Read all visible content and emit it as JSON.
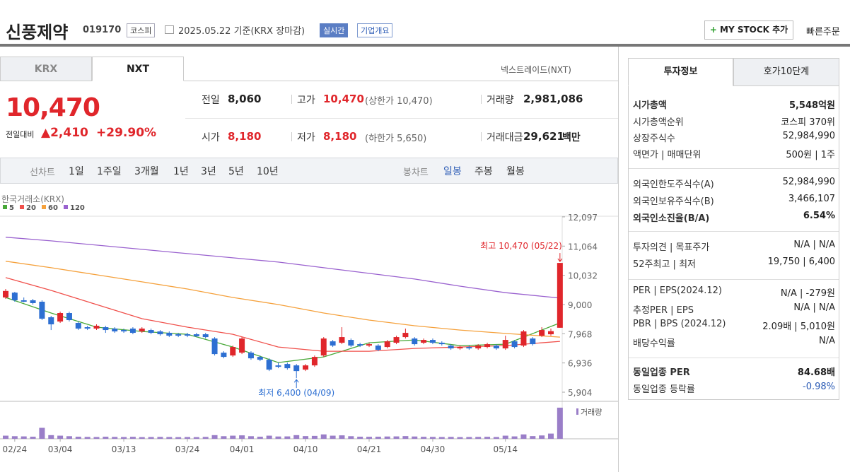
{
  "header": {
    "name": "신풍제약",
    "code": "019170",
    "market": "코스피",
    "date": "2025.05.22 기준(KRX 장마감)",
    "realtime": "실시간",
    "company": "기업개요",
    "mystock": "MY STOCK 추가",
    "quick": "빠른주문"
  },
  "tabs": [
    "KRX",
    "NXT"
  ],
  "nxt_link": "넥스트레이드(NXT)",
  "quote": {
    "price": "10,470",
    "change_label": "전일대비",
    "change": "2,410",
    "rate": "+29.90%",
    "items": [
      {
        "label": "전일",
        "value": "8,060"
      },
      {
        "label": "고가",
        "value": "10,470",
        "note": "(상한가 10,470)"
      },
      {
        "label": "거래량",
        "value": "2,981,086"
      },
      {
        "label": "시가",
        "value": "8,180"
      },
      {
        "label": "저가",
        "value": "8,180",
        "note": "(하한가 5,650)"
      },
      {
        "label": "거래대금",
        "value": "29,621",
        "unit": "백만"
      }
    ]
  },
  "periods": {
    "label": "선차트",
    "items": [
      "1일",
      "1주일",
      "3개월",
      "1년",
      "3년",
      "5년",
      "10년"
    ],
    "candle_label": "봉차트",
    "candle_items": [
      "일봉",
      "주봉",
      "월봉"
    ]
  },
  "chart_data": {
    "type": "candlestick",
    "source": "한국거래소(KRX)",
    "up_color": "#e0262b",
    "down_color": "#2d6fd2",
    "categories": [
      null,
      "02/24",
      null,
      null,
      null,
      null,
      "03/04",
      null,
      null,
      null,
      null,
      null,
      null,
      "03/13",
      null,
      null,
      null,
      null,
      null,
      null,
      "03/24",
      null,
      null,
      null,
      null,
      null,
      "04/01",
      null,
      null,
      null,
      null,
      null,
      null,
      "04/10",
      null,
      null,
      null,
      null,
      null,
      null,
      "04/21",
      null,
      null,
      null,
      null,
      null,
      null,
      "04/30",
      null,
      null,
      null,
      null,
      null,
      null,
      null,
      "05/14",
      null,
      null,
      null,
      null,
      null,
      null
    ],
    "open": [
      9250,
      9420,
      9150,
      9150,
      9100,
      8550,
      8400,
      8700,
      8350,
      8200,
      8150,
      8200,
      8150,
      8100,
      8150,
      8050,
      8100,
      8050,
      8000,
      7950,
      7950,
      7950,
      7950,
      7800,
      7300,
      7200,
      7300,
      7300,
      7150,
      7050,
      6850,
      6900,
      6850,
      6700,
      6850,
      7200,
      7700,
      7650,
      7750,
      7600,
      7550,
      7550,
      7500,
      7650,
      7850,
      7800,
      7650,
      7750,
      7650,
      7550,
      7450,
      7500,
      7450,
      7500,
      7550,
      7450,
      7700,
      7550,
      7800,
      7900,
      7950,
      8180
    ],
    "high": [
      9550,
      9450,
      9250,
      9200,
      9150,
      8600,
      8750,
      8750,
      8400,
      8250,
      8300,
      8250,
      8200,
      8150,
      8200,
      8200,
      8150,
      8100,
      8050,
      8000,
      8000,
      8000,
      8000,
      7850,
      7350,
      7550,
      7850,
      7350,
      7200,
      7100,
      6950,
      6950,
      6900,
      6900,
      7200,
      7850,
      7750,
      8200,
      7800,
      7650,
      7650,
      7600,
      7750,
      7900,
      8150,
      7850,
      7800,
      7800,
      7700,
      7600,
      7550,
      7550,
      7600,
      7650,
      7600,
      7900,
      7750,
      8100,
      7850,
      8200,
      8150,
      10470
    ],
    "low": [
      9200,
      9100,
      9080,
      9000,
      8450,
      8100,
      8350,
      8400,
      8100,
      8100,
      8100,
      8000,
      8000,
      8000,
      7950,
      8000,
      7950,
      7900,
      7850,
      7850,
      7850,
      7850,
      7800,
      7200,
      7100,
      7150,
      7250,
      7050,
      7000,
      6650,
      6750,
      6700,
      6400,
      6650,
      6800,
      7150,
      7500,
      7600,
      7500,
      7500,
      7500,
      7350,
      7450,
      7600,
      7800,
      7550,
      7600,
      7600,
      7550,
      7400,
      7400,
      7400,
      7400,
      7450,
      7400,
      7400,
      7450,
      7500,
      7550,
      7850,
      7900,
      8180
    ],
    "close": [
      9480,
      9150,
      9100,
      9050,
      8500,
      8300,
      8700,
      8450,
      8150,
      8150,
      8250,
      8100,
      8050,
      8050,
      8000,
      8150,
      8000,
      7950,
      7900,
      7900,
      7900,
      7880,
      7850,
      7250,
      7150,
      7500,
      7800,
      7100,
      7050,
      6700,
      6800,
      6750,
      6650,
      6850,
      7150,
      7800,
      7550,
      7850,
      7550,
      7550,
      7600,
      7400,
      7700,
      7850,
      8000,
      7600,
      7750,
      7650,
      7600,
      7450,
      7500,
      7450,
      7550,
      7600,
      7450,
      7750,
      7500,
      8050,
      7600,
      8100,
      8060,
      10470
    ],
    "volume": [
      300000,
      250000,
      230000,
      200000,
      1050000,
      350000,
      300000,
      250000,
      200000,
      180000,
      170000,
      200000,
      180000,
      170000,
      190000,
      160000,
      170000,
      180000,
      170000,
      160000,
      170000,
      160000,
      180000,
      350000,
      250000,
      300000,
      330000,
      250000,
      200000,
      300000,
      220000,
      230000,
      350000,
      260000,
      280000,
      420000,
      300000,
      330000,
      250000,
      200000,
      190000,
      200000,
      220000,
      230000,
      260000,
      220000,
      190000,
      180000,
      170000,
      180000,
      160000,
      170000,
      180000,
      190000,
      170000,
      300000,
      230000,
      420000,
      260000,
      320000,
      500000,
      2981086
    ],
    "volume_label": "거래량",
    "vlim": [
      0,
      3180000
    ],
    "ylim": [
      5630,
      12270
    ],
    "yticks": [
      {
        "value": 5904,
        "label": "5,904"
      },
      {
        "value": 6936,
        "label": "6,936"
      },
      {
        "value": 7968,
        "label": "7,968"
      },
      {
        "value": 9000,
        "label": "9,000"
      },
      {
        "value": 10032,
        "label": "10,032"
      },
      {
        "value": 11064,
        "label": "11,064"
      },
      {
        "value": 12097,
        "label": "12,097"
      }
    ],
    "series": [
      {
        "name": "5",
        "color": "#48a838",
        "x": [
          0,
          5,
          10,
          15,
          20,
          25,
          30,
          35,
          40,
          45,
          50,
          55,
          61
        ],
        "values": [
          9250,
          8700,
          8200,
          8050,
          7950,
          7500,
          6950,
          7150,
          7650,
          7750,
          7550,
          7600,
          8350
        ]
      },
      {
        "name": "20",
        "color": "#f0504b",
        "x": [
          0,
          5,
          10,
          15,
          20,
          25,
          30,
          35,
          40,
          45,
          50,
          55,
          61
        ],
        "values": [
          9950,
          9500,
          9000,
          8500,
          8200,
          7950,
          7500,
          7350,
          7350,
          7450,
          7500,
          7550,
          7700
        ]
      },
      {
        "name": "60",
        "color": "#f5a13c",
        "x": [
          0,
          5,
          10,
          15,
          20,
          25,
          30,
          35,
          40,
          45,
          50,
          55,
          61
        ],
        "values": [
          10530,
          10300,
          10050,
          9800,
          9550,
          9250,
          9000,
          8700,
          8450,
          8250,
          8100,
          7980,
          7850
        ]
      },
      {
        "name": "120",
        "color": "#9a62cf",
        "x": [
          0,
          5,
          10,
          15,
          20,
          25,
          30,
          35,
          40,
          45,
          50,
          55,
          61
        ],
        "values": [
          11380,
          11250,
          11100,
          10950,
          10800,
          10650,
          10500,
          10300,
          10100,
          9900,
          9650,
          9420,
          9230
        ]
      }
    ],
    "annotations": [
      {
        "text": "최고 10,470 (05/22)",
        "index": 61,
        "value": 10470
      },
      {
        "text": "최저 6,400 (04/09)",
        "index": 32,
        "value": 6400
      }
    ]
  },
  "side": {
    "tabs": [
      "투자정보",
      "호가10단계"
    ],
    "groups": [
      [
        {
          "label": "시가총액",
          "value": "5,548억원",
          "bold": true
        },
        {
          "label": "시가총액순위",
          "value": "코스피 370위"
        },
        {
          "label": "상장주식수",
          "value": "52,984,990"
        },
        {
          "label": "액면가 | 매매단위",
          "value": "500원 | 1주"
        }
      ],
      [
        {
          "label": "외국인한도주식수(A)",
          "value": "52,984,990"
        },
        {
          "label": "외국인보유주식수(B)",
          "value": "3,466,107"
        },
        {
          "label": "외국인소진율(B/A)",
          "value": "6.54%",
          "bold": true
        }
      ],
      [
        {
          "label": "투자의견 | 목표주가",
          "value": "N/A | N/A"
        },
        {
          "label": "52주최고 | 최저",
          "value": "19,750 | 6,400"
        }
      ],
      [
        {
          "label": "PER | EPS(2024.12)",
          "value": "N/A | -279원"
        },
        {
          "label": "추정PER | EPS",
          "value": "N/A | N/A"
        },
        {
          "label": "PBR | BPS (2024.12)",
          "value": "2.09배 | 5,010원"
        },
        {
          "label": "배당수익률",
          "value": "N/A"
        }
      ],
      [
        {
          "label": "동일업종 PER",
          "value": "84.68배",
          "bold": true
        },
        {
          "label": "동일업종 등락률",
          "value": "-0.98%",
          "blue": true
        }
      ]
    ]
  }
}
